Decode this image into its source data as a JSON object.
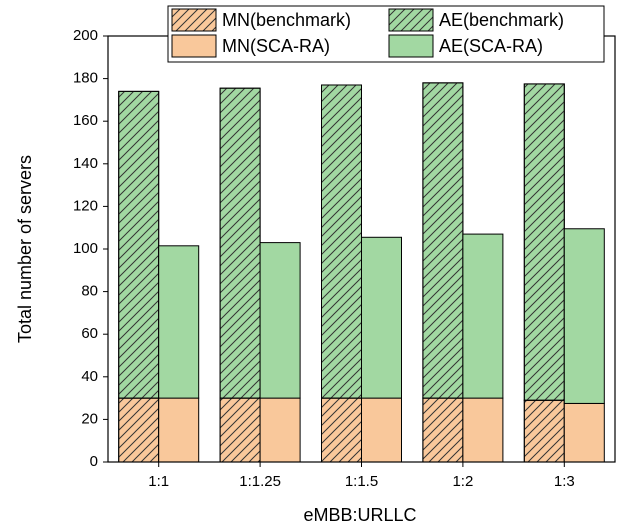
{
  "chart_data": {
    "type": "stacked-grouped-bar",
    "xlabel": "eMBB:URLLC",
    "ylabel": "Total number of servers",
    "categories": [
      "1:1",
      "1:1.25",
      "1:1.5",
      "1:2",
      "1:3"
    ],
    "ylim": [
      0,
      200
    ],
    "yticks": [
      0,
      20,
      40,
      60,
      80,
      100,
      120,
      140,
      160,
      180,
      200
    ],
    "series": [
      {
        "name": "MN(benchmark)",
        "color": "#f9c89b",
        "hatch": true,
        "stack": 0,
        "values": [
          30,
          30,
          30,
          30,
          29
        ]
      },
      {
        "name": "AE(benchmark)",
        "color": "#a2d8a2",
        "hatch": true,
        "stack": 0,
        "values": [
          144,
          145.5,
          147,
          148,
          148.5
        ]
      },
      {
        "name": "MN(SCA-RA)",
        "color": "#f9c89b",
        "hatch": false,
        "stack": 1,
        "values": [
          30,
          30,
          30,
          30,
          27.5
        ]
      },
      {
        "name": "AE(SCA-RA)",
        "color": "#a2d8a2",
        "hatch": false,
        "stack": 1,
        "values": [
          71.5,
          73,
          75.5,
          77,
          82
        ]
      }
    ]
  }
}
